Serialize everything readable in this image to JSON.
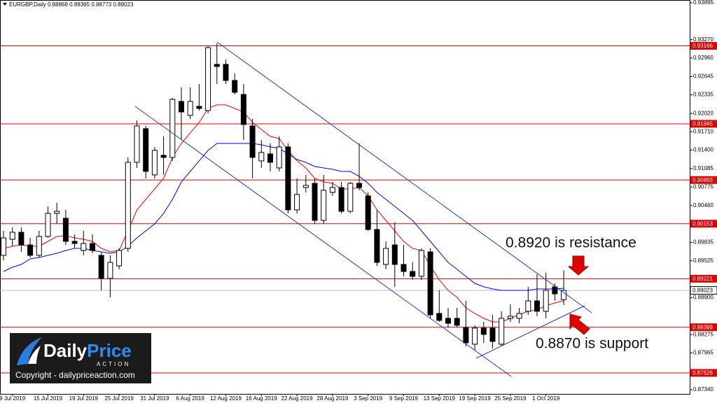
{
  "chart_data": {
    "type": "candlestick",
    "symbol": "EURGBP,Daily",
    "categories": [
      null,
      "9 Jul 2019",
      null,
      null,
      null,
      "15 Jul 2019",
      null,
      null,
      null,
      "19 Jul 2019",
      null,
      null,
      null,
      "25 Jul 2019",
      null,
      null,
      null,
      "31 Jul 2019",
      null,
      null,
      null,
      "6 Aug 2019",
      null,
      null,
      null,
      "12 Aug 2019",
      null,
      null,
      null,
      "16 Aug 2019",
      null,
      null,
      null,
      "22 Aug 2019",
      null,
      null,
      null,
      "28 Aug 2019",
      null,
      null,
      null,
      "3 Sep 2019",
      null,
      null,
      null,
      "9 Sep 2019",
      null,
      null,
      null,
      "13 Sep 2019",
      null,
      null,
      null,
      "19 Sep 2019",
      null,
      null,
      null,
      "25 Sep 2019",
      null,
      null,
      null,
      "1 Oct 2019",
      null,
      null
    ],
    "open": [
      0.89617,
      0.89889,
      0.90008,
      0.89794,
      0.89617,
      0.89937,
      0.90328,
      0.90245,
      0.89854,
      0.897,
      0.89818,
      0.89617,
      0.89226,
      0.89439,
      0.89735,
      0.91193,
      0.91762,
      0.9098,
      0.91311,
      0.91276,
      0.92224,
      0.91987,
      0.92141,
      0.9207,
      0.92852,
      0.92852,
      0.92579,
      0.92342,
      0.91809,
      0.91217,
      0.91335,
      0.91098,
      0.91454,
      0.90387,
      0.90766,
      0.90837,
      0.90209,
      0.90683,
      0.90766,
      0.90363,
      0.90837,
      0.90624,
      0.90055,
      0.89463,
      0.89794,
      0.89463,
      0.89344,
      0.89261,
      0.89676,
      0.88633,
      0.8855,
      0.8855,
      0.88396,
      0.88112,
      0.88385,
      0.88385,
      0.88112,
      0.8855,
      0.8855,
      0.88669,
      0.88846,
      0.88669,
      0.89084,
      0.88868
    ],
    "high": [
      0.90031,
      0.90091,
      0.90091,
      0.89913,
      0.90031,
      0.90446,
      0.90505,
      0.90387,
      0.89972,
      0.90031,
      0.89972,
      0.89676,
      0.89617,
      0.89735,
      0.91276,
      0.91904,
      0.91809,
      0.91454,
      0.91631,
      0.92283,
      0.92461,
      0.92461,
      0.9252,
      0.93172,
      0.93207,
      0.92935,
      0.92698,
      0.9252,
      0.91927,
      0.91572,
      0.91513,
      0.91631,
      0.91513,
      0.9092,
      0.9098,
      0.9092,
      0.9098,
      0.90861,
      0.90861,
      0.90861,
      0.91513,
      0.90683,
      0.90387,
      0.89854,
      0.90174,
      0.89794,
      0.89498,
      0.89735,
      0.89735,
      0.89024,
      0.88728,
      0.88728,
      0.88846,
      0.88432,
      0.88491,
      0.88609,
      0.88669,
      0.88787,
      0.88728,
      0.89084,
      0.89297,
      0.8932,
      0.89142,
      0.89365
    ],
    "low": [
      0.89534,
      0.89771,
      0.89676,
      0.89581,
      0.89581,
      0.89913,
      0.9015,
      0.89794,
      0.89735,
      0.89617,
      0.89652,
      0.89024,
      0.88906,
      0.8938,
      0.89676,
      0.91098,
      0.9092,
      0.9092,
      0.9098,
      0.91217,
      0.91572,
      0.91927,
      0.9207,
      0.92022,
      0.9252,
      0.9252,
      0.92342,
      0.91572,
      0.9092,
      0.91098,
      0.91039,
      0.91039,
      0.90328,
      0.90328,
      0.90683,
      0.9015,
      0.9015,
      0.90624,
      0.90328,
      0.90328,
      0.90719,
      0.90031,
      0.89439,
      0.8938,
      0.89084,
      0.89261,
      0.89202,
      0.89202,
      0.8855,
      0.88491,
      0.88396,
      0.88396,
      0.88076,
      0.88017,
      0.88135,
      0.88041,
      0.88076,
      0.88491,
      0.88467,
      0.88609,
      0.88586,
      0.8855,
      0.88846,
      0.88773
    ],
    "close": [
      0.89913,
      0.90008,
      0.89794,
      0.89617,
      0.89937,
      0.90328,
      0.90363,
      0.89854,
      0.89818,
      0.89818,
      0.897,
      0.89226,
      0.89498,
      0.897,
      0.91193,
      0.91809,
      0.91039,
      0.91394,
      0.91276,
      0.92259,
      0.92046,
      0.92224,
      0.92105,
      0.93136,
      0.92816,
      0.92579,
      0.92378,
      0.91833,
      0.91276,
      0.91359,
      0.91193,
      0.91454,
      0.90387,
      0.90648,
      0.90802,
      0.90209,
      0.90719,
      0.90766,
      0.90363,
      0.90837,
      0.90766,
      0.90055,
      0.89498,
      0.89735,
      0.89463,
      0.89344,
      0.89261,
      0.897,
      0.88609,
      0.88515,
      0.88467,
      0.88432,
      0.88135,
      0.88385,
      0.88278,
      0.88159,
      0.8855,
      0.88586,
      0.88633,
      0.88846,
      0.88669,
      0.89024,
      0.88965,
      0.89023
    ],
    "up_color": "#ffffff",
    "down_color": "#000000",
    "series": [
      {
        "color": "#ff0000",
        "values": [
          0.89735,
          0.89771,
          0.89794,
          0.89771,
          0.89771,
          0.89854,
          0.89937,
          0.89948,
          0.89913,
          0.89889,
          0.89854,
          0.89735,
          0.89676,
          0.897,
          0.90031,
          0.90387,
          0.90565,
          0.90742,
          0.9092,
          0.91276,
          0.91513,
          0.91691,
          0.91868,
          0.92105,
          0.92165,
          0.92165,
          0.92105,
          0.92046,
          0.91868,
          0.9175,
          0.91631,
          0.91596,
          0.91394,
          0.91217,
          0.91098,
          0.9092,
          0.90861,
          0.90837,
          0.90742,
          0.90742,
          0.90766,
          0.90624,
          0.90387,
          0.90209,
          0.90031,
          0.89854,
          0.89735,
          0.897,
          0.89439,
          0.89202,
          0.89024,
          0.88906,
          0.88728,
          0.88633,
          0.8855,
          0.88491,
          0.88491,
          0.8855,
          0.8861,
          0.88669,
          0.88692,
          0.88764,
          0.88811,
          0.88847
        ]
      },
      {
        "color": "#0000ff",
        "values": [
          0.89344,
          0.89415,
          0.89463,
          0.89557,
          0.89581,
          0.89617,
          0.89652,
          0.897,
          0.89735,
          0.89735,
          0.897,
          0.89676,
          0.89652,
          0.89676,
          0.89771,
          0.89913,
          0.90031,
          0.9015,
          0.90328,
          0.90565,
          0.90861,
          0.91039,
          0.91217,
          0.91394,
          0.91513,
          0.91513,
          0.91513,
          0.91513,
          0.91513,
          0.91489,
          0.91454,
          0.9143,
          0.91335,
          0.9124,
          0.91193,
          0.91122,
          0.91098,
          0.91074,
          0.91039,
          0.91039,
          0.90956,
          0.90837,
          0.90683,
          0.90565,
          0.90446,
          0.90328,
          0.90209,
          0.90031,
          0.89854,
          0.89676,
          0.89498,
          0.8938,
          0.89261,
          0.89143,
          0.89084,
          0.89048,
          0.89024,
          0.89024,
          0.89024,
          0.89024,
          0.89048,
          0.89048,
          0.89048,
          0.8906
        ]
      }
    ],
    "levels": [
      0.93166,
      0.91845,
      0.90893,
      0.90153,
      0.89221,
      0.88399,
      0.87626
    ],
    "level_color": "#e00000",
    "ylim": [
      0.8727,
      0.93942
    ],
    "yticks": [
      0.93895,
      {
        "value": 0.9327,
        "label": "0.93270"
      },
      {
        "value": 0.9296,
        "label": "0.92960"
      },
      0.92645,
      0.92335,
      {
        "value": 0.9202,
        "label": "0.92020"
      },
      {
        "value": 0.9171,
        "label": "0.91710"
      },
      {
        "value": 0.914,
        "label": "0.91400"
      },
      0.91085,
      0.90775,
      {
        "value": 0.9046,
        "label": "0.90460"
      },
      0.89835,
      0.89525,
      {
        "value": 0.889,
        "label": "0.88900"
      },
      0.88275,
      0.87965,
      {
        "value": 0.8734,
        "label": "0.87340"
      }
    ],
    "annotations": [
      "0.8920 is resistance",
      "0.8870 is support"
    ],
    "logo": {
      "word1": "Daily",
      "word2": "Price",
      "word3": "ACTION",
      "copyright": "Copyright - dailypriceaction.com"
    }
  }
}
